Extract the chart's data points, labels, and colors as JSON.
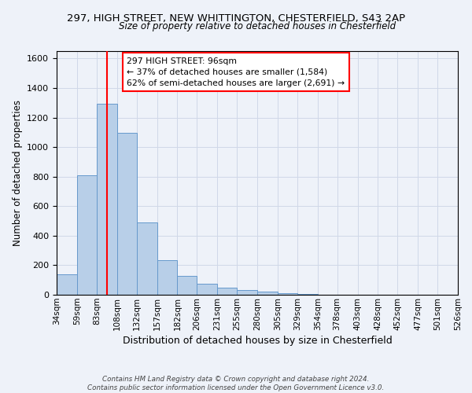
{
  "title_line1": "297, HIGH STREET, NEW WHITTINGTON, CHESTERFIELD, S43 2AP",
  "title_line2": "Size of property relative to detached houses in Chesterfield",
  "xlabel": "Distribution of detached houses by size in Chesterfield",
  "ylabel": "Number of detached properties",
  "bin_labels": [
    "34sqm",
    "59sqm",
    "83sqm",
    "108sqm",
    "132sqm",
    "157sqm",
    "182sqm",
    "206sqm",
    "231sqm",
    "255sqm",
    "280sqm",
    "305sqm",
    "329sqm",
    "354sqm",
    "378sqm",
    "403sqm",
    "428sqm",
    "452sqm",
    "477sqm",
    "501sqm",
    "526sqm"
  ],
  "bar_values": [
    140,
    810,
    1295,
    1095,
    490,
    235,
    130,
    75,
    50,
    30,
    20,
    10,
    5,
    0,
    0,
    0,
    0,
    0,
    0,
    0,
    0
  ],
  "bar_color": "#b8cfe8",
  "bar_edge_color": "#6699cc",
  "vline_x": 96,
  "vline_color": "red",
  "annotation_box_text": "297 HIGH STREET: 96sqm\n← 37% of detached houses are smaller (1,584)\n62% of semi-detached houses are larger (2,691) →",
  "ylim": [
    0,
    1650
  ],
  "yticks": [
    0,
    200,
    400,
    600,
    800,
    1000,
    1200,
    1400,
    1600
  ],
  "footnote": "Contains HM Land Registry data © Crown copyright and database right 2024.\nContains public sector information licensed under the Open Government Licence v3.0.",
  "bg_color": "#eef2f9",
  "grid_color": "#d0d8e8",
  "bin_edges": [
    34,
    59,
    83,
    108,
    132,
    157,
    182,
    206,
    231,
    255,
    280,
    305,
    329,
    354,
    378,
    403,
    428,
    452,
    477,
    501,
    526
  ]
}
